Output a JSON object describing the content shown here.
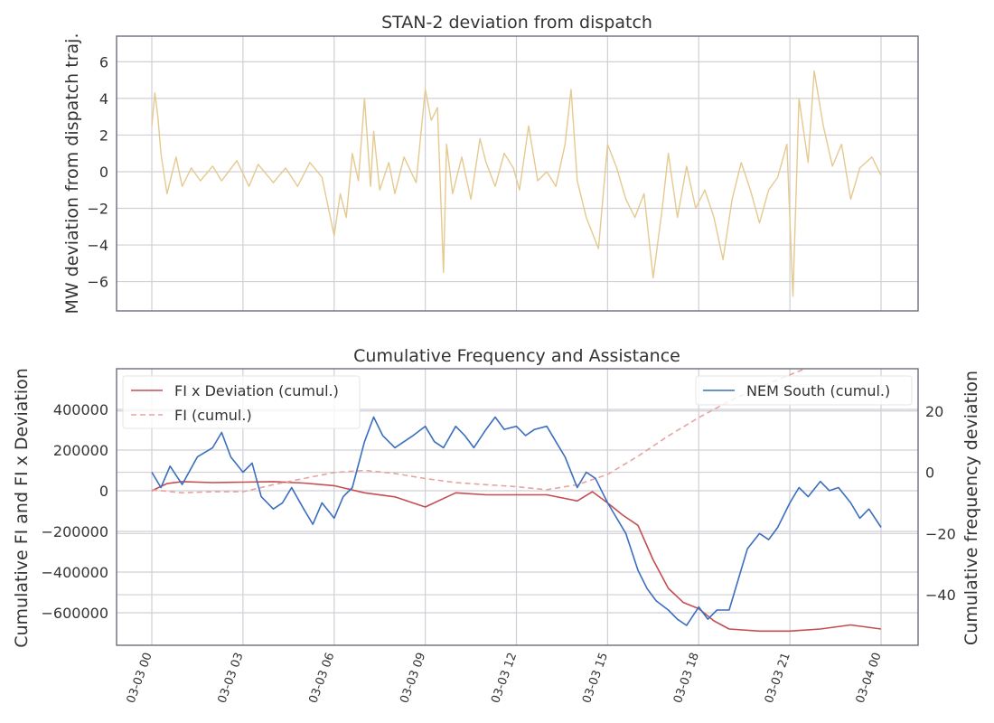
{
  "chart_data": [
    {
      "type": "line",
      "title": "STAN-2 deviation from dispatch",
      "xlabel": "",
      "ylabel": "MW deviation from dispatch traj.",
      "x_range": [
        "03-03 00:00",
        "03-04 00:00"
      ],
      "ylim": [
        -7.6,
        7.4
      ],
      "yticks": [
        -6,
        -4,
        -2,
        0,
        2,
        4,
        6
      ],
      "grid": true,
      "series": [
        {
          "color": "#e5c98f",
          "hours": [
            0,
            0.1,
            0.2,
            0.3,
            0.5,
            0.8,
            1.0,
            1.3,
            1.6,
            2.0,
            2.3,
            2.8,
            3.2,
            3.5,
            4.0,
            4.4,
            4.8,
            5.2,
            5.6,
            6.0,
            6.2,
            6.4,
            6.6,
            6.8,
            7.0,
            7.2,
            7.3,
            7.5,
            7.8,
            8.0,
            8.3,
            8.7,
            9.0,
            9.2,
            9.4,
            9.6,
            9.7,
            9.9,
            10.2,
            10.5,
            10.8,
            11.0,
            11.3,
            11.6,
            11.9,
            12.1,
            12.4,
            12.7,
            13.0,
            13.3,
            13.6,
            13.8,
            14.0,
            14.3,
            14.7,
            15.0,
            15.3,
            15.6,
            15.9,
            16.2,
            16.5,
            16.8,
            17.0,
            17.3,
            17.6,
            17.9,
            18.2,
            18.5,
            18.8,
            19.1,
            19.4,
            19.7,
            20.0,
            20.3,
            20.6,
            20.9,
            21.1,
            21.3,
            21.6,
            21.8,
            22.1,
            22.4,
            22.7,
            23.0,
            23.3,
            23.7,
            24.0
          ],
          "values": [
            2.5,
            4.3,
            3.0,
            1.0,
            -1.2,
            0.8,
            -0.8,
            0.2,
            -0.5,
            0.3,
            -0.5,
            0.6,
            -0.8,
            0.4,
            -0.6,
            0.2,
            -0.8,
            0.5,
            -0.3,
            -3.5,
            -1.2,
            -2.5,
            1.0,
            -0.5,
            4.0,
            -0.8,
            2.2,
            -1.0,
            0.5,
            -1.2,
            0.8,
            -0.6,
            4.5,
            2.8,
            3.5,
            -5.5,
            1.5,
            -1.2,
            0.8,
            -1.5,
            1.8,
            0.5,
            -0.8,
            1.0,
            0.2,
            -1.0,
            2.5,
            -0.5,
            0.0,
            -0.8,
            1.5,
            4.5,
            -0.5,
            -2.5,
            -4.2,
            1.5,
            0.2,
            -1.5,
            -2.5,
            -1.2,
            -5.8,
            -2.0,
            1.0,
            -2.5,
            0.3,
            -2.0,
            -1.0,
            -2.5,
            -4.8,
            -1.5,
            0.5,
            -1.0,
            -2.8,
            -1.0,
            -0.3,
            1.5,
            -6.8,
            4.0,
            0.5,
            5.5,
            2.5,
            0.3,
            1.5,
            -1.5,
            0.2,
            0.8,
            -0.2
          ]
        }
      ]
    },
    {
      "type": "line",
      "title": "Cumulative Frequency and Assistance",
      "xlabel": "",
      "ylabel": "Cumulative FI and FI x Deviation",
      "y2label": "Cumulative frequency deviation",
      "ylim": [
        -760000,
        600000
      ],
      "yticks": [
        -600000,
        -400000,
        -200000,
        0,
        200000,
        400000
      ],
      "y2lim": [
        -56.5,
        33.8
      ],
      "y2ticks": [
        -40,
        -20,
        0,
        20
      ],
      "xticks": [
        "03-03 00",
        "03-03 03",
        "03-03 06",
        "03-03 09",
        "03-03 12",
        "03-03 15",
        "03-03 18",
        "03-03 21",
        "03-04 00"
      ],
      "legend_left": "upper-left",
      "legend_right": "upper-right",
      "grid": true,
      "series": [
        {
          "name": "FI x Deviation (cumul.)",
          "axis": "left",
          "color": "#c44e52",
          "dash": "solid",
          "hours": [
            0,
            0.5,
            1,
            2,
            3,
            4,
            5,
            6,
            7,
            8,
            9,
            10,
            11,
            12,
            13,
            14,
            14.5,
            15,
            15.5,
            16,
            16.5,
            17,
            17.5,
            18,
            18.5,
            19,
            20,
            21,
            22,
            23,
            24
          ],
          "values": [
            0,
            35000,
            45000,
            40000,
            42000,
            45000,
            38000,
            25000,
            -10000,
            -30000,
            -80000,
            -10000,
            -20000,
            -20000,
            -20000,
            -50000,
            -5000,
            -60000,
            -120000,
            -170000,
            -340000,
            -480000,
            -550000,
            -580000,
            -640000,
            -680000,
            -690000,
            -690000,
            -680000,
            -660000,
            -680000
          ]
        },
        {
          "name": "FI (cumul.)",
          "axis": "left",
          "color": "#e6a4a0",
          "dash": "dashed",
          "hours": [
            0,
            1,
            2,
            3,
            4,
            5,
            6,
            7,
            8,
            9,
            10,
            11,
            12,
            13,
            14,
            15,
            16,
            17,
            18,
            19,
            20,
            21,
            21.5
          ],
          "values": [
            5000,
            -10000,
            -5000,
            -5000,
            30000,
            60000,
            90000,
            100000,
            85000,
            60000,
            40000,
            30000,
            20000,
            5000,
            30000,
            80000,
            170000,
            270000,
            360000,
            440000,
            510000,
            570000,
            600000
          ]
        },
        {
          "name": "NEM South (cumul.)",
          "axis": "right",
          "color": "#3a6ebf",
          "dash": "solid",
          "hours": [
            0,
            0.3,
            0.6,
            1.0,
            1.5,
            2.0,
            2.3,
            2.6,
            3.0,
            3.3,
            3.6,
            4.0,
            4.3,
            4.6,
            5.0,
            5.3,
            5.6,
            6.0,
            6.3,
            6.6,
            7.0,
            7.3,
            7.6,
            8.0,
            8.3,
            8.6,
            9.0,
            9.3,
            9.6,
            10.0,
            10.3,
            10.6,
            11.0,
            11.3,
            11.6,
            12.0,
            12.3,
            12.6,
            13.0,
            13.3,
            13.6,
            14.0,
            14.3,
            14.6,
            15.0,
            15.3,
            15.6,
            16.0,
            16.3,
            16.6,
            17.0,
            17.3,
            17.6,
            18.0,
            18.3,
            18.6,
            19.0,
            19.3,
            19.6,
            20.0,
            20.3,
            20.6,
            21.0,
            21.3,
            21.6,
            22.0,
            22.3,
            22.6,
            23.0,
            23.3,
            23.6,
            24.0
          ],
          "values": [
            0,
            -5,
            2,
            -4,
            5,
            8,
            13,
            5,
            0,
            3,
            -8,
            -12,
            -10,
            -5,
            -12,
            -17,
            -10,
            -15,
            -8,
            -5,
            10,
            18,
            12,
            8,
            10,
            12,
            15,
            10,
            8,
            15,
            12,
            8,
            14,
            18,
            14,
            15,
            12,
            14,
            15,
            10,
            5,
            -5,
            0,
            -2,
            -10,
            -15,
            -20,
            -32,
            -38,
            -42,
            -45,
            -48,
            -50,
            -44,
            -48,
            -45,
            -45,
            -35,
            -25,
            -20,
            -22,
            -18,
            -10,
            -5,
            -8,
            -3,
            -6,
            -5,
            -10,
            -15,
            -12,
            -18
          ]
        }
      ]
    }
  ]
}
